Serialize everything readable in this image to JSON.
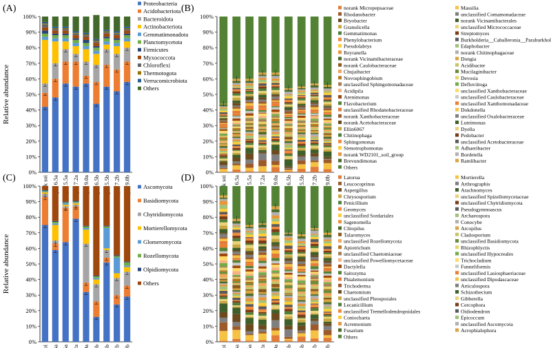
{
  "chart_data": [
    {
      "type": "bar",
      "panel_label": "(A)",
      "title": "",
      "ylabel": "Relative abundance",
      "xlabel": "",
      "ylim": [
        0,
        100
      ],
      "yticks": [
        "0%",
        "10%",
        "20%",
        "30%",
        "40%",
        "50%",
        "60%",
        "70%",
        "80%",
        "90%",
        "100%"
      ],
      "categories": [
        "Bulk soi",
        "pH 6.5a",
        "pH 5.5a",
        "pH 7.2a",
        "pH 9.0a",
        "pH 6.5b",
        "pH 5.5b",
        "pH 7.2b",
        "pH 9.0b"
      ],
      "series": [
        {
          "name": "Proteobacteria",
          "color": "#4472C4",
          "values": [
            42,
            48,
            57,
            55,
            57,
            44,
            55,
            52,
            58
          ]
        },
        {
          "name": "Acidobacteriota",
          "color": "#ED7D31",
          "values": [
            9,
            12,
            14,
            16,
            5,
            14,
            14,
            14,
            13
          ]
        },
        {
          "name": "Bacteroidota",
          "color": "#A5A5A5",
          "values": [
            6,
            10,
            8,
            5,
            9,
            11,
            10,
            10,
            9
          ]
        },
        {
          "name": "Actinobacteriota",
          "color": "#FFC000",
          "values": [
            28,
            14,
            5,
            5,
            8,
            7,
            3,
            5,
            4
          ]
        },
        {
          "name": "Gemmatimonadota",
          "color": "#5B9BD5",
          "values": [
            2,
            2,
            2,
            2,
            2,
            2,
            2,
            2,
            2
          ]
        },
        {
          "name": "Planctomycetota",
          "color": "#70AD47",
          "values": [
            2,
            2,
            2,
            2,
            2,
            2,
            2,
            2,
            2
          ]
        },
        {
          "name": "Firmicutes",
          "color": "#264478",
          "values": [
            2,
            1,
            1,
            1,
            2,
            1,
            1,
            1,
            1
          ]
        },
        {
          "name": "Myxococcota",
          "color": "#9E480E",
          "values": [
            2,
            2,
            2,
            2,
            2,
            2,
            2,
            2,
            2
          ]
        },
        {
          "name": "Chloroflexi",
          "color": "#636363",
          "values": [
            2,
            1,
            1,
            1,
            1,
            1,
            1,
            1,
            1
          ]
        },
        {
          "name": "Thermotogota",
          "color": "#997300",
          "values": [
            0.5,
            0.5,
            0.5,
            0.5,
            0.5,
            0.5,
            0.5,
            0.5,
            0.5
          ]
        },
        {
          "name": "Verrucomicrobiota",
          "color": "#255E91",
          "values": [
            1,
            1,
            1,
            1,
            1,
            1,
            1,
            1,
            1
          ]
        },
        {
          "name": "Others",
          "color": "#43682B",
          "values": [
            3.5,
            6.5,
            6.5,
            9.5,
            10.5,
            15.5,
            8.5,
            9.5,
            6.5
          ]
        }
      ]
    },
    {
      "type": "bar",
      "panel_label": "(B)",
      "title": "",
      "ylabel": "",
      "ylim": [
        0,
        100
      ],
      "yticks": [
        "0%",
        "10%",
        "20%",
        "30%",
        "40%",
        "50%",
        "60%",
        "70%",
        "80%",
        "90%",
        "100%"
      ],
      "categories": [
        "Bulk soi",
        "pH 6.5a",
        "pH 5.5a",
        "pH 7.2a",
        "pH 9.0a",
        "pH 6.5b",
        "pH 5.5b",
        "pH 7.2b",
        "pH 9.0b"
      ],
      "legend": [
        "norank Micropepsaceae",
        "Massilia",
        "Rhodanobacter",
        "unclassified Comamonadaceae",
        "Bryobacter",
        "norank Vicinamibacterales",
        "Granulicella",
        "unclassified Micrococcaceae",
        "Gemmatimonas",
        "Streptomyces",
        "Phenylobacterium",
        "Burkholderia__Caballeronia__Paraburkholderia",
        "Pseudolabrys",
        "Edaphobacter",
        "Reyranella",
        "norank Chitinophagaceae",
        "norank Vicinamibacteraceae",
        "Dongia",
        "norank Caulobacteraceae",
        "Acidibacter",
        "Chujaibacter",
        "Mucilaginibacter",
        "Novosphingobium",
        "Devosia",
        "unclassified Sphingomonadaceae",
        "Defluviitoga",
        "Acidipila",
        "unclassified Xanthobacteraceae",
        "Arenimonas",
        "unclassified Caulobacteraceae",
        "Flavobacterium",
        "unclassified Xanthomonadaceae",
        "unclassified Rhodanobacteraceae",
        "Dokdonella",
        "norank Xanthobacteraceae",
        "unclassified Oxalobacteraceae",
        "norank Acetobacteraceae",
        "Luteimonas",
        "Ellin6067",
        "Dyella",
        "Chitinophaga",
        "Pedobacter",
        "Sphingomonas",
        "unclassified Acetobacteraceae",
        "Stenotrophomonas",
        "Adhaeribacter",
        "norank WD2101_soil_group",
        "Bordetella",
        "Brevundimonas",
        "Ramlibacter",
        "Others"
      ],
      "others_value": [
        56,
        40,
        40,
        36,
        36,
        46,
        45,
        43,
        44
      ],
      "legend_colors": [
        "#e07b39",
        "#f5c243",
        "#9c5a2a",
        "#7f7f7f",
        "#6b4b1e",
        "#3e5f2a",
        "#c8a640",
        "#e9d27a",
        "#4f7f3a",
        "#7a3c15",
        "#f08a3c",
        "#5a5a5a",
        "#ffcc33",
        "#a0c27a",
        "#e8963a",
        "#b0b0b0",
        "#4b6b2b",
        "#d9a441",
        "#8a5a1e",
        "#c5c56a",
        "#f2a65a",
        "#6a8c3a",
        "#b8751f",
        "#e6d36a",
        "#a67c52",
        "#70ad47",
        "#f4b183",
        "#ffd966",
        "#9e480e",
        "#c9c9c9",
        "#548235",
        "#ed7d31"
      ],
      "others_color": "#548235"
    },
    {
      "type": "bar",
      "panel_label": "(C)",
      "title": "",
      "ylabel": "Relative abundance",
      "ylim": [
        0,
        100
      ],
      "yticks": [
        "0%",
        "10%",
        "20%",
        "30%",
        "40%",
        "50%",
        "60%",
        "70%",
        "80%",
        "90%",
        "100%"
      ],
      "categories": [
        "Bulk soi",
        "pH 6.5a",
        "pH 5.5a",
        "pH 7.2a",
        "pH 9.0a",
        "pH 6.5b",
        "pH 5.5b",
        "pH 7.2b",
        "pH 9.0b"
      ],
      "series": [
        {
          "name": "Ascomycota",
          "color": "#4472C4",
          "values": [
            75,
            59,
            64,
            79,
            32,
            16,
            51,
            24,
            29
          ]
        },
        {
          "name": "Basidiomycota",
          "color": "#ED7D31",
          "values": [
            18,
            4,
            22,
            8,
            6,
            10,
            3,
            6,
            7
          ]
        },
        {
          "name": "Chytridiomycota",
          "color": "#A5A5A5",
          "values": [
            2,
            2,
            1,
            1,
            25,
            11,
            5,
            11,
            9
          ]
        },
        {
          "name": "Mortierellomycota",
          "color": "#FFC000",
          "values": [
            1,
            10,
            1,
            1,
            9,
            3,
            1,
            3,
            3
          ]
        },
        {
          "name": "Glomeromycota",
          "color": "#5B9BD5",
          "values": [
            0.5,
            1,
            1,
            0.5,
            1,
            1,
            13,
            10,
            1
          ]
        },
        {
          "name": "Rozellomycota",
          "color": "#70AD47",
          "values": [
            0.5,
            1,
            0.5,
            0.5,
            1,
            1,
            1,
            1,
            2
          ]
        },
        {
          "name": "Olpidiomycota",
          "color": "#264478",
          "values": [
            0.5,
            0.5,
            0.5,
            0.5,
            0.5,
            0.5,
            0.5,
            0.5,
            0.5
          ]
        },
        {
          "name": "Others",
          "color": "#9E480E",
          "values": [
            2.5,
            22.5,
            10,
            9.5,
            25.5,
            57.5,
            25.5,
            44.5,
            48.5
          ]
        }
      ]
    },
    {
      "type": "bar",
      "panel_label": "(D)",
      "title": "",
      "ylabel": "",
      "ylim": [
        0,
        100
      ],
      "yticks": [
        "0%",
        "10%",
        "20%",
        "30%",
        "40%",
        "50%",
        "60%",
        "70%",
        "80%",
        "90%",
        "100%"
      ],
      "categories": [
        "Bulk soi",
        "pH 6.5a",
        "pH 5.5a",
        "pH 7.2a",
        "pH 9.0a",
        "pH 6.5b",
        "pH 5.5b",
        "pH 7.2b",
        "pH 9.0b"
      ],
      "legend": [
        "Latorua",
        "Mortierella",
        "Leucocoprinus",
        "Arthrographis",
        "Aspergillus",
        "Arachnomyces",
        "Chrysosporium",
        "unclassified Spizellomycetaceae",
        "Penicillium",
        "unclassified Chytridiomycota",
        "Geomyces",
        "Pseudogymnoascus",
        "unclassified Sordariales",
        "Archaeospora",
        "Sagenomella",
        "Conocybe",
        "Clitopilus",
        "Arcopilus",
        "Talaromyces",
        "Cladosporium",
        "unclassified Rozellomycota",
        "unclassified Basidiomycota",
        "Apiotrichum",
        "Rhizophlyctis",
        "unclassified Chaetomiaceae",
        "unclassified Hypocreales",
        "unclassified Powelliomycetaceae",
        "Trichocladium",
        "Dactylella",
        "Funneliformis",
        "Saitozyma",
        "unclassified Lasiosphaeriaceae",
        "Phialemonium",
        "unclassified Dipodascaceae",
        "Trichoderma",
        "Articulospora",
        "Chaetomium",
        "Schizothecium",
        "unclassified Pleosporales",
        "Gibberella",
        "Lecanicillium",
        "Cercophora",
        "unclassified Tremellodendropsidales",
        "Oidiodendron",
        "Coniochaeta",
        "Epicoccum",
        "Acremonium",
        "unclassified Ascomycota",
        "Fusarium",
        "Acrophialophora",
        "Others"
      ],
      "others_value": [
        6,
        21,
        25,
        24,
        13,
        30,
        31,
        27,
        30
      ],
      "legend_colors": [
        "#e07b39",
        "#f5c243",
        "#9c5a2a",
        "#7f7f7f",
        "#6b4b1e",
        "#3e5f2a",
        "#c8a640",
        "#e9d27a",
        "#4f7f3a",
        "#7a3c15",
        "#f08a3c",
        "#5a5a5a",
        "#ffcc33",
        "#a0c27a",
        "#e8963a",
        "#b0b0b0",
        "#4b6b2b",
        "#d9a441",
        "#8a5a1e",
        "#c5c56a",
        "#f2a65a",
        "#6a8c3a",
        "#b8751f",
        "#e6d36a",
        "#a67c52",
        "#70ad47",
        "#f4b183",
        "#ffd966",
        "#9e480e",
        "#c9c9c9",
        "#548235",
        "#ed7d31"
      ],
      "others_color": "#548235"
    }
  ]
}
